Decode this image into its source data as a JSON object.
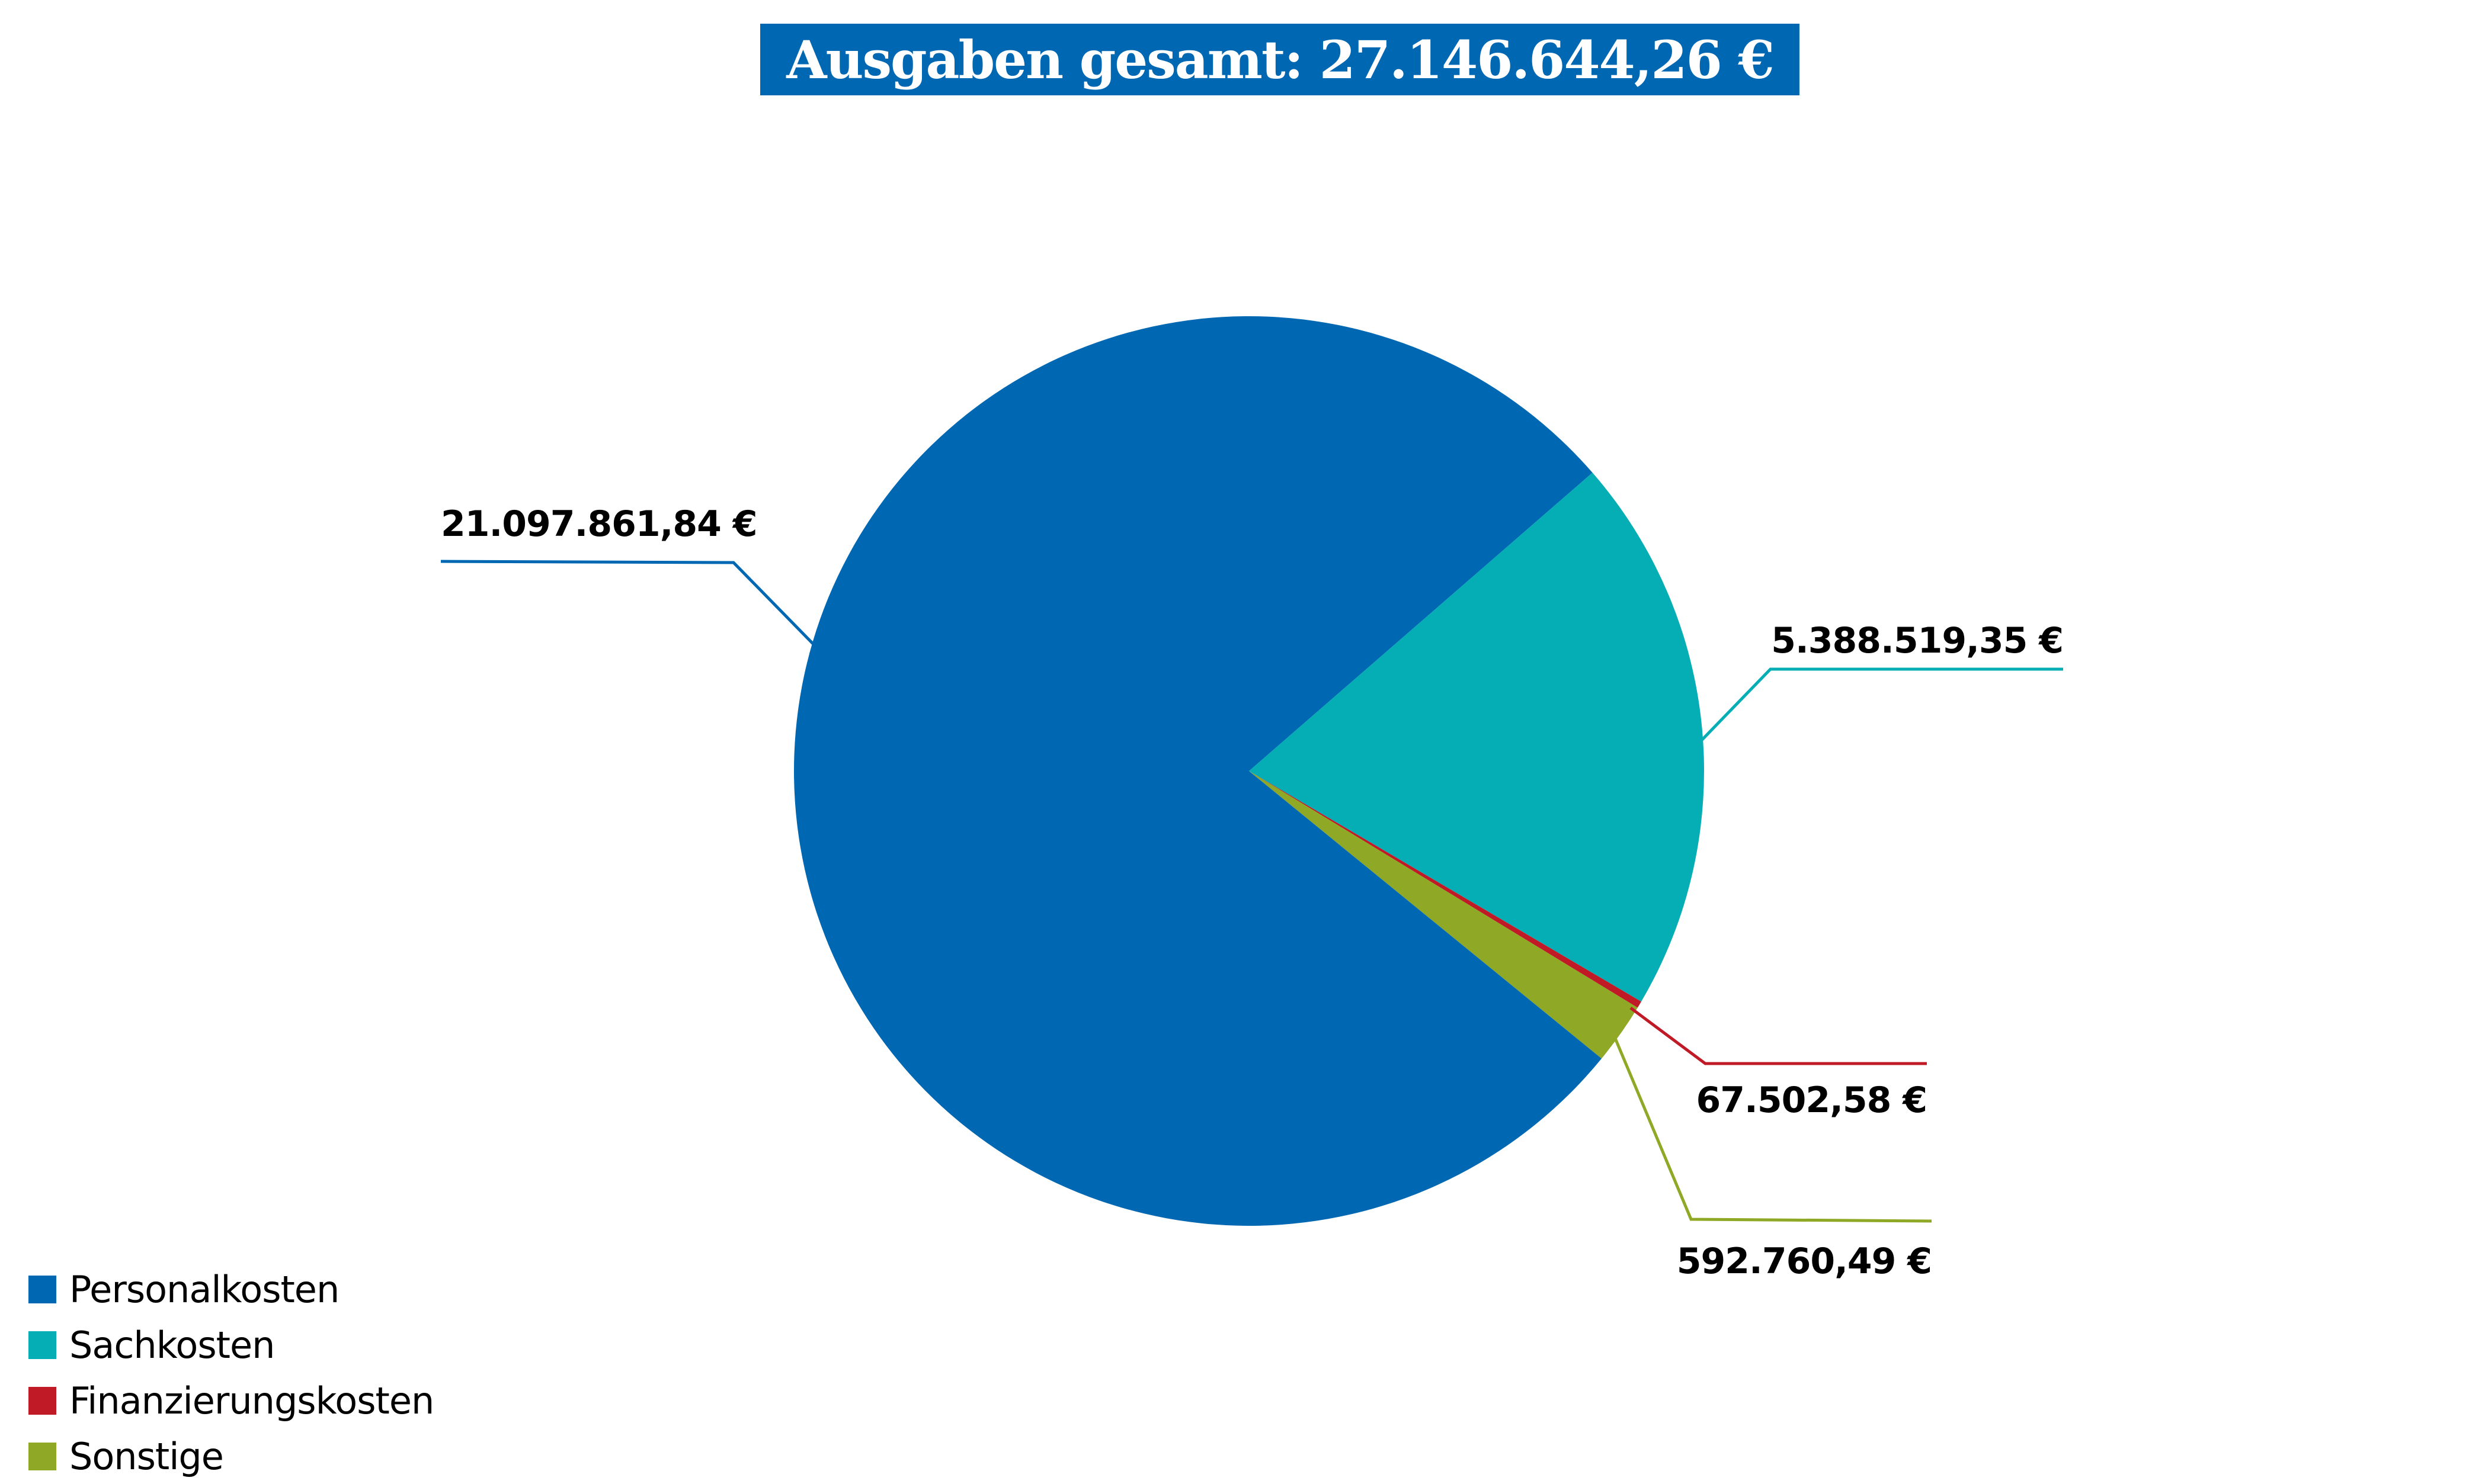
{
  "title": "Ausgaben gesamt: 27.146.644,26 €",
  "colors": {
    "title_bg": "#0068b3",
    "personalkosten": "#0068b3",
    "sachkosten": "#05aeb5",
    "finanzierungskosten": "#c01a27",
    "sonstige": "#8fa826"
  },
  "labels": {
    "personalkosten": "21.097.861,84 €",
    "sachkosten": "5.388.519,35 €",
    "finanzierungskosten": "67.502,58 €",
    "sonstige": "592.760,49 €"
  },
  "legend": [
    {
      "label": "Personalkosten",
      "color": "#0068b3"
    },
    {
      "label": "Sachkosten",
      "color": "#05aeb5"
    },
    {
      "label": "Finanzierungskosten",
      "color": "#c01a27"
    },
    {
      "label": "Sonstige",
      "color": "#8fa826"
    }
  ],
  "chart_data": {
    "type": "pie",
    "title": "Ausgaben gesamt: 27.146.644,26 €",
    "total": 27146644.26,
    "categories": [
      "Personalkosten",
      "Sachkosten",
      "Finanzierungskosten",
      "Sonstige"
    ],
    "values": [
      21097861.84,
      5388519.35,
      67502.58,
      592760.49
    ],
    "value_labels": [
      "21.097.861,84 €",
      "5.388.519,35 €",
      "67.502,58 €",
      "592.760,49 €"
    ],
    "colors": [
      "#0068b3",
      "#05aeb5",
      "#c01a27",
      "#8fa826"
    ],
    "legend_position": "bottom-left",
    "currency": "EUR"
  }
}
